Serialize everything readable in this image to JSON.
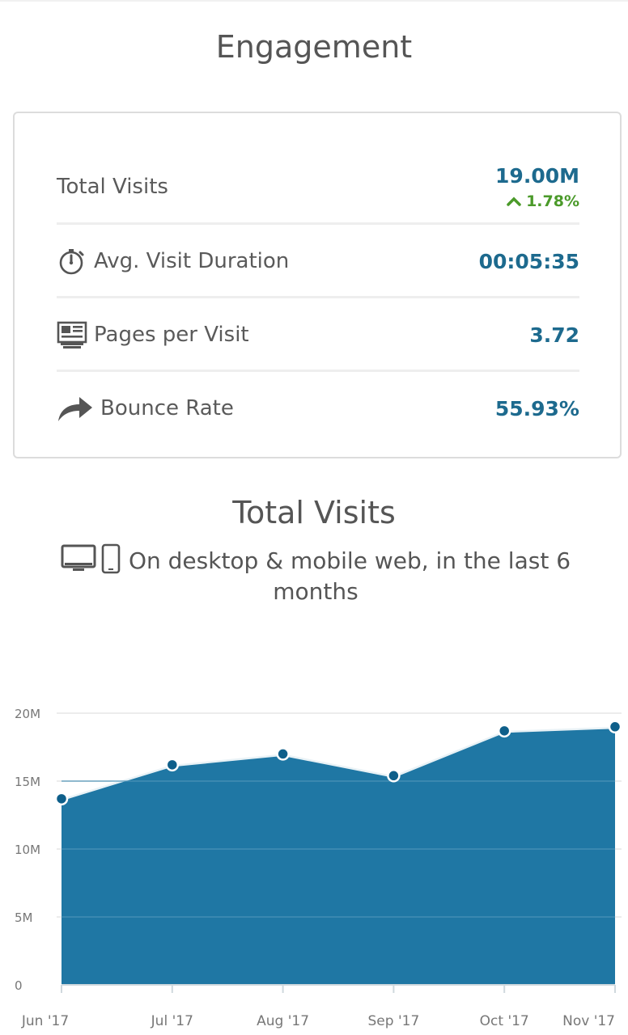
{
  "engagement": {
    "title": "Engagement",
    "metrics": {
      "total_visits": {
        "label": "Total Visits",
        "value": "19.00M",
        "change": "1.78%",
        "change_direction": "up"
      },
      "avg_visit_duration": {
        "label": "Avg. Visit Duration",
        "value": "00:05:35",
        "icon": "stopwatch-icon"
      },
      "pages_per_visit": {
        "label": "Pages per Visit",
        "value": "3.72",
        "icon": "pages-icon"
      },
      "bounce_rate": {
        "label": "Bounce Rate",
        "value": "55.93%",
        "icon": "bounce-arrow-icon"
      }
    },
    "colors": {
      "value": "#1d6a8e",
      "positive": "#4b9a2a"
    }
  },
  "total_visits_chart": {
    "title": "Total Visits",
    "subtitle": "On desktop & mobile web, in the last 6 months",
    "device_icons": [
      "desktop-icon",
      "mobile-icon"
    ]
  },
  "chart_data": {
    "type": "area",
    "categories": [
      "Jun '17",
      "Jul '17",
      "Aug '17",
      "Sep '17",
      "Oct '17",
      "Nov '17"
    ],
    "values": [
      13.7,
      16.2,
      17.0,
      15.4,
      18.7,
      19.0
    ],
    "unit": "M",
    "ylim": [
      0,
      20
    ],
    "yticks": [
      "0",
      "5M",
      "10M",
      "15M",
      "20M"
    ],
    "grid": true,
    "colors": {
      "fill": "#1f77a4",
      "point": "#0e5f8a"
    }
  }
}
